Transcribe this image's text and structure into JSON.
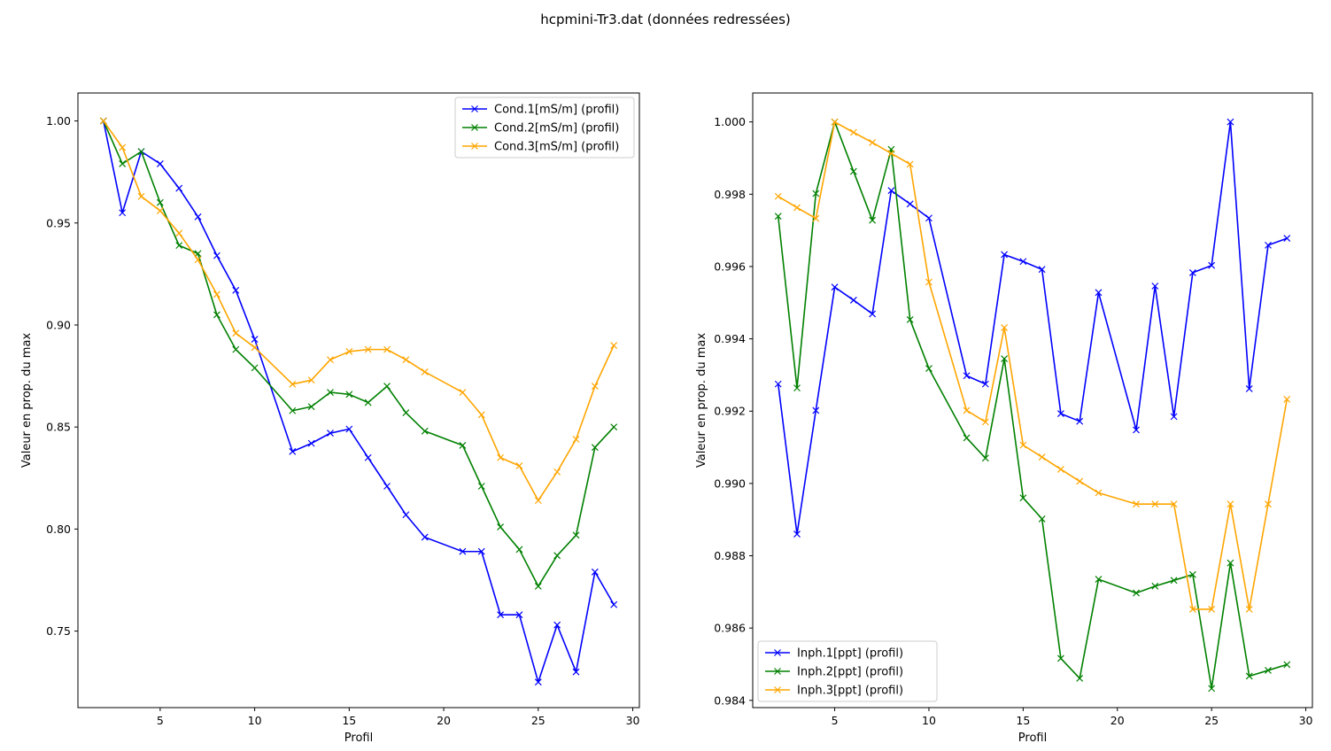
{
  "figure": {
    "suptitle": "hcpmini-Tr3.dat (données redressées)"
  },
  "chart_data": [
    {
      "type": "line",
      "xlabel": "Profil",
      "ylabel": "Valeur en prop. du max",
      "xlim": [
        0.65,
        30.35
      ],
      "ylim": [
        0.7125,
        1.0137
      ],
      "xticks": [
        5,
        10,
        15,
        20,
        25,
        30
      ],
      "yticks": [
        0.75,
        0.8,
        0.85,
        0.9,
        0.95,
        1.0
      ],
      "ytick_labels": [
        "0.75",
        "0.80",
        "0.85",
        "0.90",
        "0.95",
        "1.00"
      ],
      "legend_position": "top-right",
      "marker": "x",
      "grid": false,
      "x": [
        2,
        3,
        4,
        5,
        6,
        7,
        8,
        9,
        10,
        12,
        13,
        14,
        15,
        16,
        17,
        18,
        19,
        21,
        22,
        23,
        24,
        25,
        26,
        27,
        28,
        29
      ],
      "series": [
        {
          "name": "Cond.1[mS/m] (profil)",
          "color": "#0000ff",
          "values": [
            1.0,
            0.955,
            0.985,
            0.979,
            0.967,
            0.953,
            0.934,
            0.917,
            0.893,
            0.838,
            0.842,
            0.847,
            0.849,
            0.835,
            0.821,
            0.807,
            0.796,
            0.789,
            0.789,
            0.758,
            0.758,
            0.725,
            0.753,
            0.73,
            0.779,
            0.763
          ]
        },
        {
          "name": "Cond.2[mS/m] (profil)",
          "color": "#008000",
          "values": [
            1.0,
            0.979,
            0.985,
            0.96,
            0.939,
            0.935,
            0.905,
            0.888,
            0.879,
            0.858,
            0.86,
            0.867,
            0.866,
            0.862,
            0.87,
            0.857,
            0.848,
            0.841,
            0.821,
            0.801,
            0.79,
            0.772,
            0.787,
            0.797,
            0.84,
            0.85
          ]
        },
        {
          "name": "Cond.3[mS/m] (profil)",
          "color": "#ffa500",
          "values": [
            1.0,
            0.987,
            0.963,
            0.956,
            0.945,
            0.932,
            0.915,
            0.896,
            0.889,
            0.871,
            0.873,
            0.883,
            0.887,
            0.888,
            0.888,
            0.883,
            0.877,
            0.867,
            0.856,
            0.835,
            0.831,
            0.814,
            0.828,
            0.844,
            0.87,
            0.89
          ]
        }
      ]
    },
    {
      "type": "line",
      "xlabel": "Profil",
      "ylabel": "Valeur en prop. du max",
      "xlim": [
        0.65,
        30.35
      ],
      "ylim": [
        0.9838,
        1.0008
      ],
      "xticks": [
        5,
        10,
        15,
        20,
        25,
        30
      ],
      "yticks": [
        0.984,
        0.986,
        0.988,
        0.99,
        0.992,
        0.994,
        0.996,
        0.998,
        1.0
      ],
      "ytick_labels": [
        "0.984",
        "0.986",
        "0.988",
        "0.990",
        "0.992",
        "0.994",
        "0.996",
        "0.998",
        "1.000"
      ],
      "legend_position": "bottom-left",
      "marker": "x",
      "grid": false,
      "x": [
        2,
        3,
        4,
        5,
        6,
        7,
        8,
        9,
        10,
        12,
        13,
        14,
        15,
        16,
        17,
        18,
        19,
        21,
        22,
        23,
        24,
        25,
        26,
        27,
        28,
        29
      ],
      "series": [
        {
          "name": "Inph.1[ppt] (profil)",
          "color": "#0000ff",
          "values": [
            0.99275,
            0.9886,
            0.99202,
            0.99543,
            0.99507,
            0.99469,
            0.9981,
            0.99773,
            0.99734,
            0.99298,
            0.99275,
            0.99633,
            0.99614,
            0.99592,
            0.99193,
            0.99172,
            0.99528,
            0.99148,
            0.99546,
            0.99185,
            0.99583,
            0.99603,
            1.0,
            0.99262,
            0.99659,
            0.99678
          ]
        },
        {
          "name": "Inph.2[ppt] (profil)",
          "color": "#008000",
          "values": [
            0.99739,
            0.99264,
            0.99802,
            1.0,
            0.99863,
            0.99728,
            0.99924,
            0.99453,
            0.99318,
            0.99126,
            0.9907,
            0.99345,
            0.9896,
            0.98902,
            0.98516,
            0.98461,
            0.98735,
            0.98697,
            0.98716,
            0.98732,
            0.98748,
            0.98433,
            0.9878,
            0.98467,
            0.98483,
            0.98499
          ]
        },
        {
          "name": "Inph.3[ppt] (profil)",
          "color": "#ffa500",
          "values": [
            0.99794,
            0.99763,
            0.99733,
            1.0,
            0.99971,
            0.99943,
            0.99913,
            0.99883,
            0.99557,
            0.99202,
            0.9917,
            0.99431,
            0.99106,
            0.99073,
            0.99039,
            0.99006,
            0.98974,
            0.98943,
            0.98943,
            0.98943,
            0.98652,
            0.98652,
            0.98943,
            0.98652,
            0.98943,
            0.99233
          ]
        }
      ]
    }
  ]
}
